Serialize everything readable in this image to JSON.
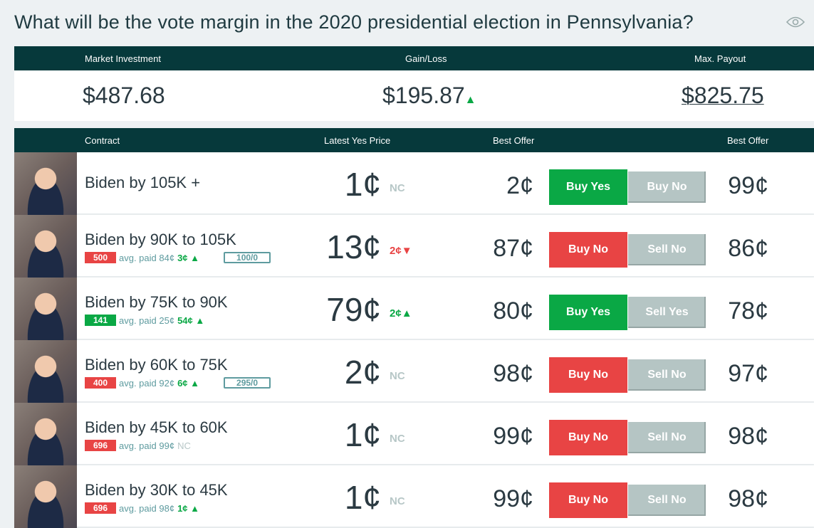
{
  "title": "What will be the vote margin in the 2020 presidential election in Pennsylvania?",
  "summary": {
    "labels": [
      "Market Investment",
      "Gain/Loss",
      "Max. Payout"
    ],
    "investment": "$487.68",
    "gain": "$195.87",
    "gain_dir": "up",
    "payout": "$825.75"
  },
  "table": {
    "headers": [
      "Contract",
      "Latest Yes Price",
      "Best Offer",
      "Best Offer"
    ]
  },
  "colors": {
    "header": "#06393b",
    "green": "#0aa845",
    "red": "#e84444",
    "gray_button": "#b5c5c4"
  },
  "rows": [
    {
      "name": "Biden by 105K +",
      "price": "1¢",
      "change": "NC",
      "change_dir": "none",
      "best_offer_1": "2¢",
      "btn1": "Buy Yes",
      "btn1_color": "green",
      "btn2": "Buy No",
      "best_offer_2": "99¢"
    },
    {
      "name": "Biden by 90K to 105K",
      "qty": "500",
      "qty_color": "red",
      "avg": "avg. paid 84¢",
      "avg_change": "3¢",
      "avg_dir": "up",
      "orders": "100/0",
      "price": "13¢",
      "change": "2¢",
      "change_dir": "down",
      "best_offer_1": "87¢",
      "btn1": "Buy No",
      "btn1_color": "red",
      "btn2": "Sell No",
      "best_offer_2": "86¢"
    },
    {
      "name": "Biden by 75K to 90K",
      "qty": "141",
      "qty_color": "green",
      "avg": "avg. paid 25¢",
      "avg_change": "54¢",
      "avg_dir": "up",
      "price": "79¢",
      "change": "2¢",
      "change_dir": "up",
      "best_offer_1": "80¢",
      "btn1": "Buy Yes",
      "btn1_color": "green",
      "btn2": "Sell Yes",
      "best_offer_2": "78¢"
    },
    {
      "name": "Biden by 60K to 75K",
      "qty": "400",
      "qty_color": "red",
      "avg": "avg. paid 92¢",
      "avg_change": "6¢",
      "avg_dir": "up",
      "orders": "295/0",
      "price": "2¢",
      "change": "NC",
      "change_dir": "none",
      "best_offer_1": "98¢",
      "btn1": "Buy No",
      "btn1_color": "red",
      "btn2": "Sell No",
      "best_offer_2": "97¢"
    },
    {
      "name": "Biden by 45K to 60K",
      "qty": "696",
      "qty_color": "red",
      "avg": "avg. paid 99¢",
      "avg_change": "NC",
      "avg_dir": "none",
      "price": "1¢",
      "change": "NC",
      "change_dir": "none",
      "best_offer_1": "99¢",
      "btn1": "Buy No",
      "btn1_color": "red",
      "btn2": "Sell No",
      "best_offer_2": "98¢"
    },
    {
      "name": "Biden by 30K to 45K",
      "qty": "696",
      "qty_color": "red",
      "avg": "avg. paid 98¢",
      "avg_change": "1¢",
      "avg_dir": "up",
      "price": "1¢",
      "change": "NC",
      "change_dir": "none",
      "best_offer_1": "99¢",
      "btn1": "Buy No",
      "btn1_color": "red",
      "btn2": "Sell No",
      "best_offer_2": "98¢"
    }
  ]
}
